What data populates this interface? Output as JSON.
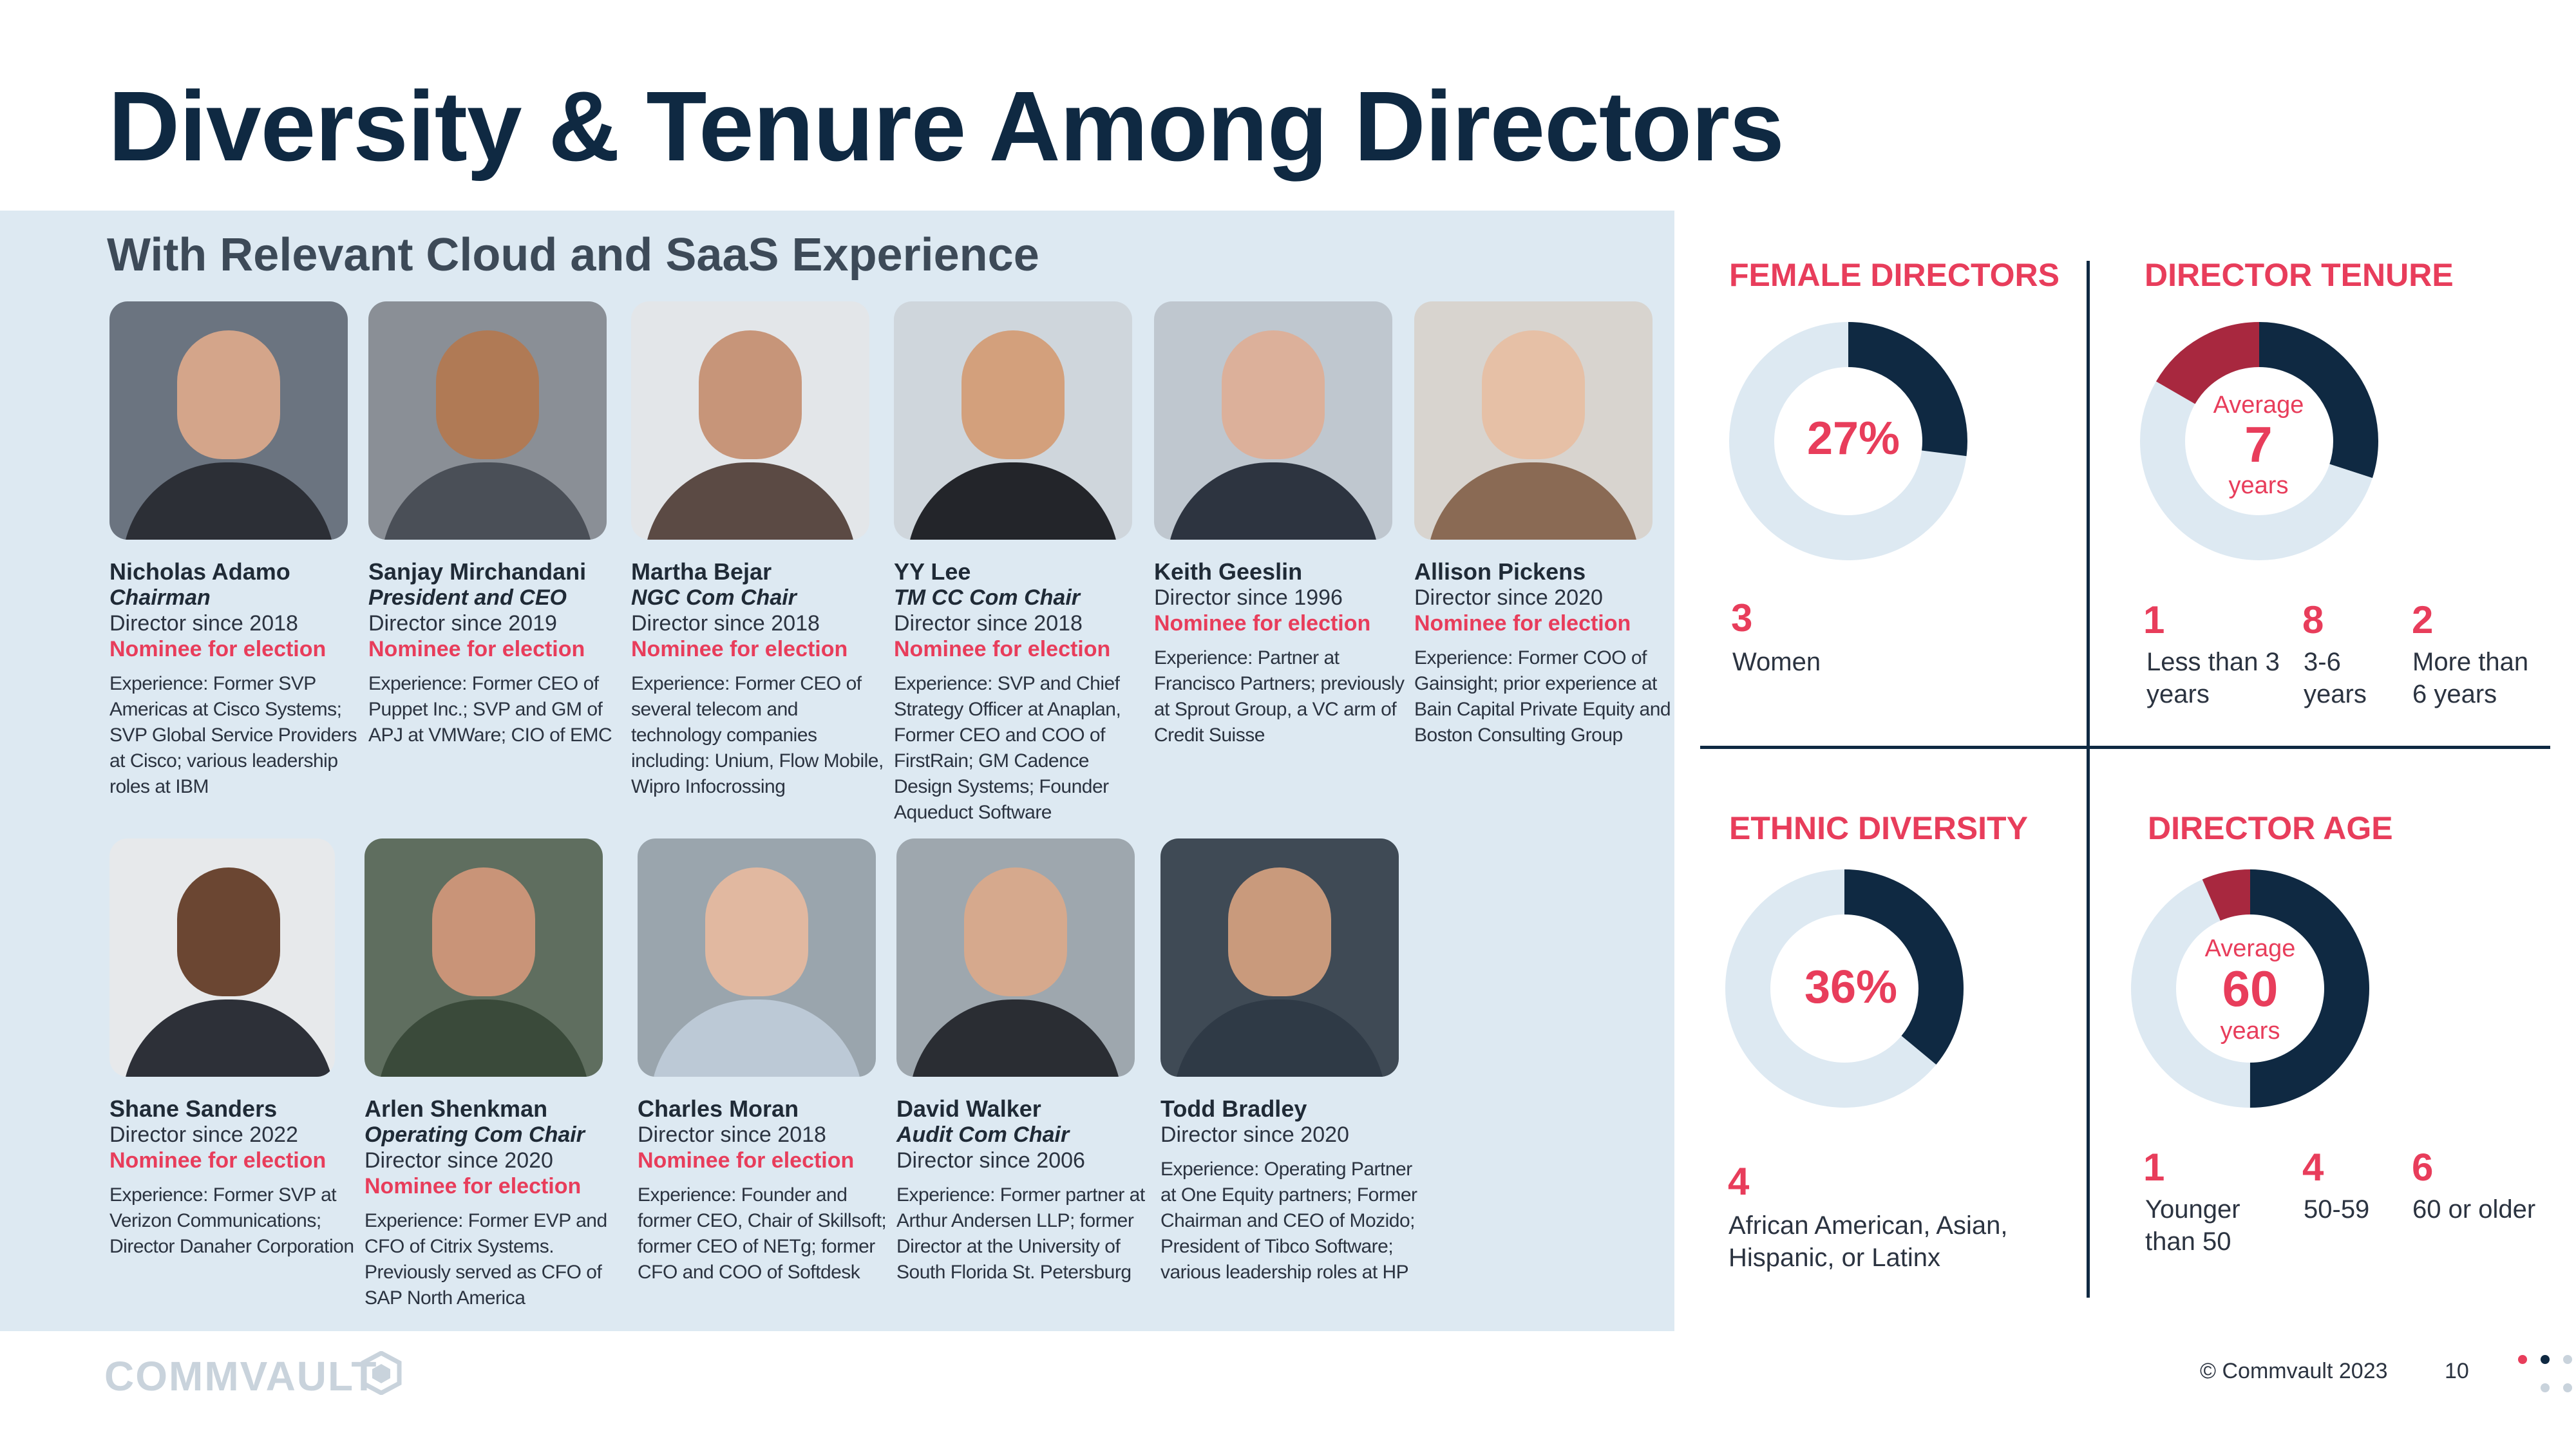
{
  "title": "Diversity & Tenure Among Directors",
  "subtitle": "With Relevant Cloud and SaaS Experience",
  "directors": [
    {
      "name": "Nicholas Adamo",
      "role": "Chairman",
      "since": "Director since 2018",
      "nominee": "Nominee for election",
      "experience": "Experience: Former SVP Americas at Cisco Systems; SVP Global Service Providers at Cisco; various leadership roles at IBM"
    },
    {
      "name": "Sanjay Mirchandani",
      "role": "President and CEO",
      "since": "Director since 2019",
      "nominee": "Nominee for election",
      "experience": "Experience: Former CEO of Puppet Inc.; SVP and GM of APJ at VMWare; CIO of EMC"
    },
    {
      "name": "Martha Bejar",
      "role": "NGC Com Chair",
      "since": "Director since 2018",
      "nominee": "Nominee for election",
      "experience": "Experience: Former CEO of several telecom and technology companies including: Unium, Flow Mobile, Wipro Infocrossing"
    },
    {
      "name": "YY Lee",
      "role": "TM CC Com Chair",
      "since": "Director since 2018",
      "nominee": "Nominee for election",
      "experience": "Experience: SVP and Chief Strategy Officer at Anaplan, Former CEO and COO of FirstRain; GM Cadence Design Systems; Founder Aqueduct Software"
    },
    {
      "name": "Keith Geeslin",
      "role": "",
      "since": "Director since 1996",
      "nominee": "Nominee for election",
      "experience": "Experience: Partner at Francisco Partners; previously at Sprout Group, a VC arm of Credit Suisse"
    },
    {
      "name": "Allison Pickens",
      "role": "",
      "since": "Director since 2020",
      "nominee": "Nominee for election",
      "experience": "Experience: Former COO of Gainsight; prior experience at Bain Capital Private Equity and Boston Consulting Group"
    },
    {
      "name": "Shane Sanders",
      "role": "",
      "since": "Director since 2022",
      "nominee": "Nominee for election",
      "experience": "Experience: Former SVP at Verizon Communications; Director Danaher Corporation"
    },
    {
      "name": "Arlen Shenkman",
      "role": "Operating Com Chair",
      "since": "Director since 2020",
      "nominee": "Nominee for election",
      "experience": "Experience: Former EVP and CFO of Citrix Systems. Previously served as CFO of SAP North America"
    },
    {
      "name": "Charles Moran",
      "role": "",
      "since": "Director since 2018",
      "nominee": "Nominee for election",
      "experience": "Experience: Founder and former CEO, Chair of Skillsoft; former CEO of NETg; former CFO and COO of Softdesk"
    },
    {
      "name": "David Walker",
      "role": "Audit Com Chair",
      "since": "Director since 2006",
      "nominee": "",
      "experience": "Experience: Former partner at Arthur Andersen LLP; former Director at the University of South Florida St. Petersburg"
    },
    {
      "name": "Todd Bradley",
      "role": "",
      "since": "Director since 2020",
      "nominee": "",
      "experience": "Experience: Operating Partner at One Equity partners; Former Chairman and CEO of Mozido; President of Tibco Software; various leadership roles at HP"
    }
  ],
  "female": {
    "heading": "FEMALE DIRECTORS",
    "pct_label": "27%",
    "pct": 27,
    "count": "3",
    "count_label": "Women"
  },
  "tenure": {
    "heading": "DIRECTOR TENURE",
    "avg_label": "Average",
    "avg_value": "7",
    "avg_unit": "years",
    "buckets": [
      {
        "count": "1",
        "label": "Less than 3 years"
      },
      {
        "count": "8",
        "label": "3-6 years"
      },
      {
        "count": "2",
        "label": "More than 6 years"
      }
    ],
    "values": [
      1,
      8,
      2
    ]
  },
  "ethnic": {
    "heading": "ETHNIC DIVERSITY",
    "pct_label": "36%",
    "pct": 36,
    "count": "4",
    "count_label": "African American, Asian, Hispanic, or Latinx"
  },
  "age": {
    "heading": "DIRECTOR AGE",
    "avg_label": "Average",
    "avg_value": "60",
    "avg_unit": "years",
    "buckets": [
      {
        "count": "1",
        "label": "Younger than 50"
      },
      {
        "count": "4",
        "label": "50-59"
      },
      {
        "count": "6",
        "label": "60 or older"
      }
    ],
    "values": [
      1,
      4,
      6
    ]
  },
  "footer": {
    "logo": "COMMVAULT",
    "copyright": "© Commvault  2023",
    "page": "10"
  },
  "colors": {
    "navy": "#0f2942",
    "pink": "#e83d5b",
    "crimson": "#a8283f",
    "pale": "#dde9f2",
    "ring_bg": "#dde9f2"
  }
}
